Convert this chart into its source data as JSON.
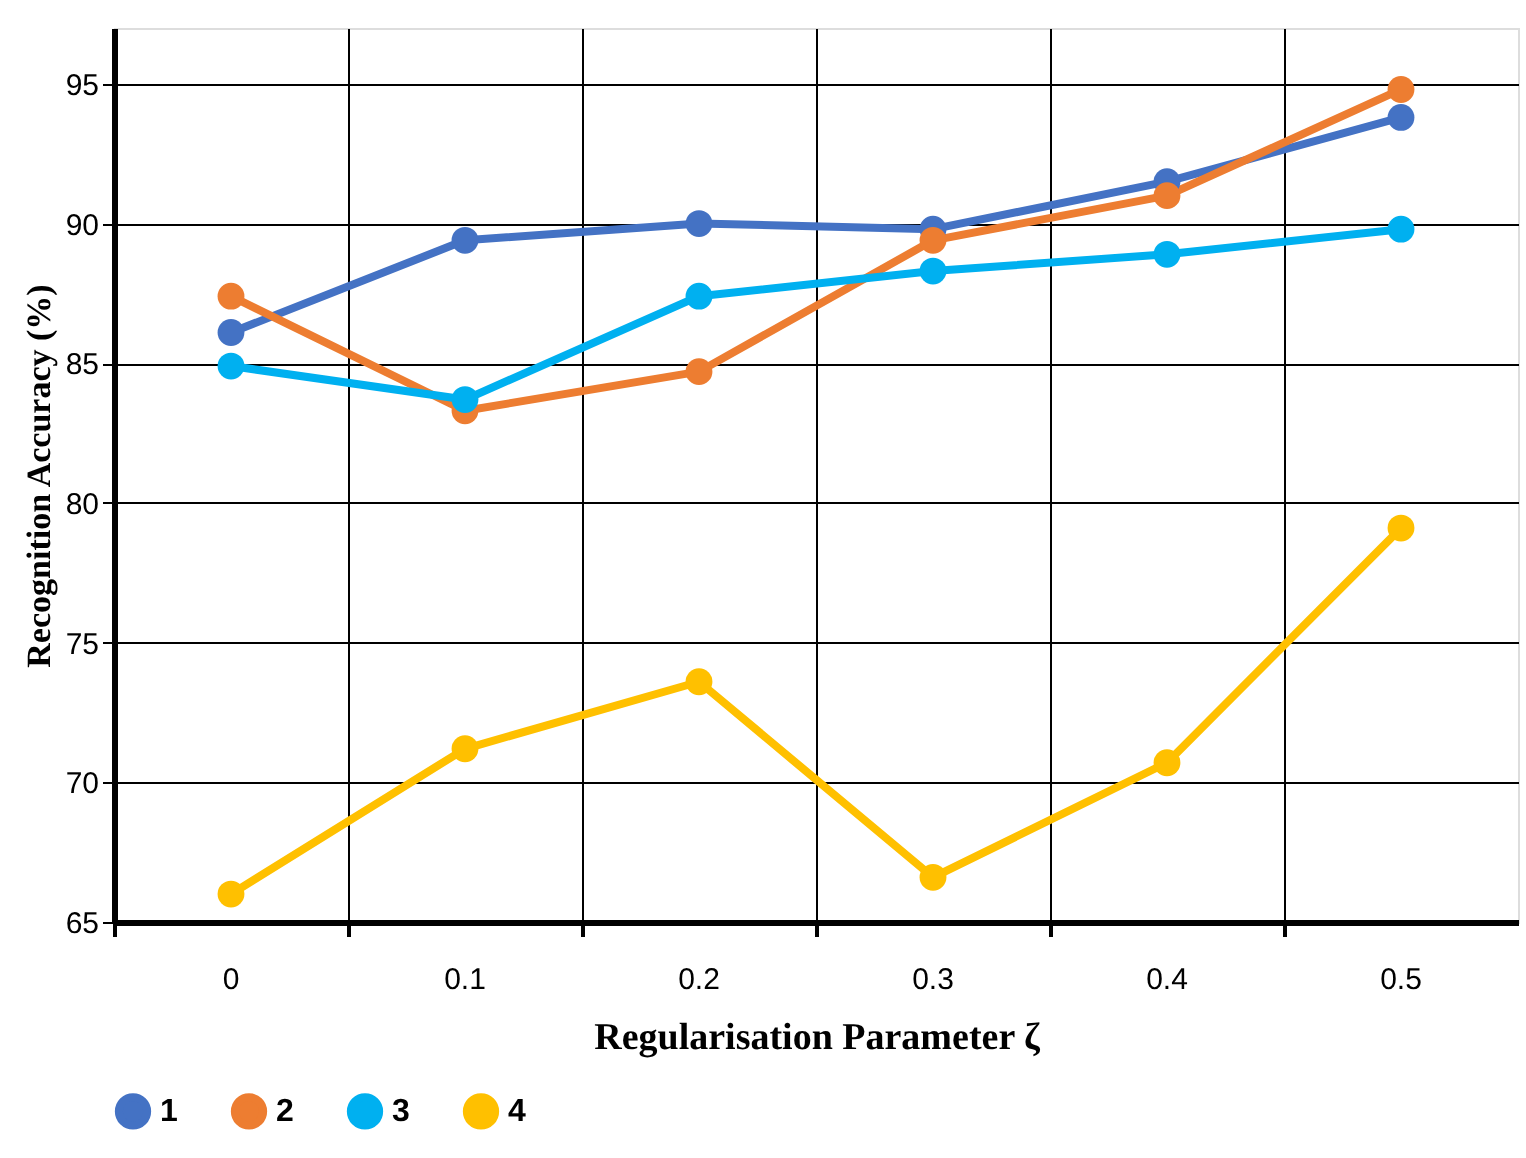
{
  "chart_data": {
    "type": "line",
    "xlabel": "Regularisation Parameter ζ",
    "ylabel": "Recognition Accuracy (%)",
    "categories": [
      "0",
      "0.1",
      "0.2",
      "0.3",
      "0.4",
      "0.5"
    ],
    "series": [
      {
        "name": "1",
        "color": "#4472c4",
        "values": [
          86.1,
          89.4,
          90.0,
          89.8,
          91.5,
          93.8
        ]
      },
      {
        "name": "2",
        "color": "#ed7d31",
        "values": [
          87.4,
          83.3,
          84.7,
          89.4,
          91.0,
          94.8
        ]
      },
      {
        "name": "3",
        "color": "#00b0f0",
        "values": [
          84.9,
          83.7,
          87.4,
          88.3,
          88.9,
          89.8
        ]
      },
      {
        "name": "4",
        "color": "#ffc000",
        "values": [
          66.0,
          71.2,
          73.6,
          66.6,
          70.7,
          79.1
        ]
      }
    ],
    "ylim": [
      65,
      97
    ],
    "yticks": [
      65,
      70,
      75,
      80,
      85,
      90,
      95
    ],
    "grid": true,
    "legend": "bottom",
    "marker": "circle",
    "line_style": "solid"
  }
}
